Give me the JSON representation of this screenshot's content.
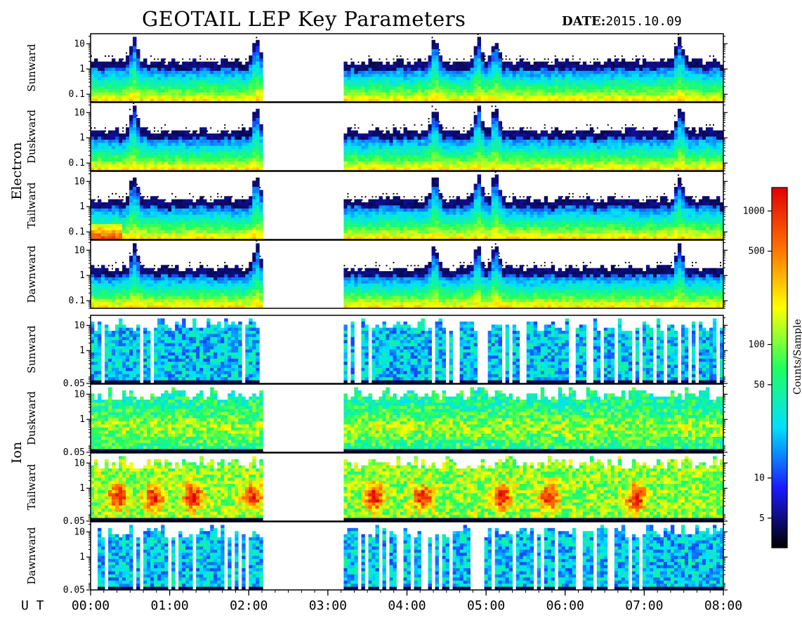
{
  "header": {
    "title": "GEOTAIL LEP Key Parameters",
    "date_label": "DATE:",
    "date_value": "2015.10.09"
  },
  "chart_data": {
    "type": "heatmap",
    "title": "GEOTAIL LEP Key Parameters",
    "date": "2015.10.09",
    "x_axis": {
      "prefix": "U T",
      "ticks": [
        "00:00",
        "01:00",
        "02:00",
        "03:00",
        "04:00",
        "05:00",
        "06:00",
        "07:00",
        "08:00"
      ],
      "range_hours": [
        0,
        8
      ]
    },
    "data_gaps_hours": [
      [
        2.17,
        3.22
      ]
    ],
    "groups": [
      {
        "name": "Electron",
        "y_scale": "log",
        "y_range": [
          0.05,
          25
        ],
        "y_ticks": [
          "10",
          "1",
          "0.1"
        ],
        "panels": [
          "Sunward",
          "Duskward",
          "Tailward",
          "Dawnward"
        ]
      },
      {
        "name": "Ion",
        "y_scale": "log",
        "y_range": [
          0.05,
          25
        ],
        "y_ticks": [
          "10",
          "1",
          "0.05"
        ],
        "panels": [
          "Sunward",
          "Duskward",
          "Tailward",
          "Dawnward"
        ]
      }
    ],
    "colorbar": {
      "label": "Counts/Sample",
      "scale": "log",
      "range": [
        3,
        1500
      ],
      "ticks": [
        "1000",
        "500",
        "100",
        "50",
        "10",
        "5"
      ],
      "tick_values": [
        1000,
        500,
        100,
        50,
        10,
        5
      ],
      "colors": [
        "#000000",
        "#1a1aff",
        "#00e0ff",
        "#20ff60",
        "#ffff00",
        "#ff7000",
        "#e00000"
      ]
    },
    "intensity_profile": {
      "electron_peaks_hours": [
        0.55,
        2.1,
        4.35,
        4.9,
        5.12,
        7.45
      ],
      "ion_tailward_hot_hours": [
        0.35,
        0.8,
        1.3,
        2.05,
        3.6,
        4.2,
        5.2,
        5.8,
        6.9
      ]
    }
  }
}
